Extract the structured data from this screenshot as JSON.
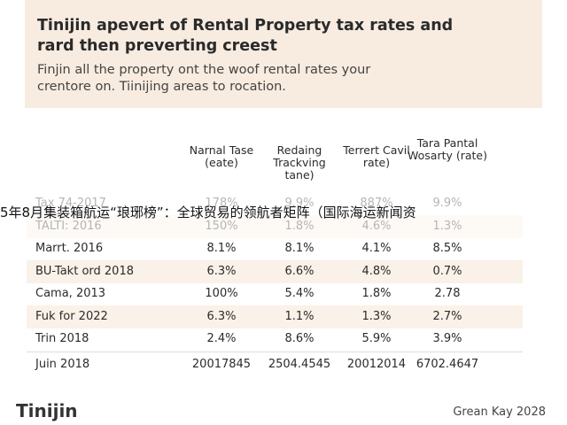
{
  "header": {
    "title": "Tinijin apevert of Rental Property tax rates and rard then preverting creest",
    "subtitle": "Finjin all the property ont the woof rental rates your crentore on. Tiinijing areas to rocation."
  },
  "table": {
    "columns": [
      "Narnal Tase (eate)",
      "Redaing Trackving tane)",
      "Terrert Cavil rate)",
      "Tara Pantal Wosarty (rate)"
    ],
    "rows": [
      [
        "Tax 74-2017",
        "178%",
        "9.9%",
        "887%",
        "9.9%"
      ],
      [
        "TALTI: 2016",
        "150%",
        "1.8%",
        "4.6%",
        "1.3%"
      ],
      [
        "Marrt. 2016",
        "8.1%",
        "8.1%",
        "4.1%",
        "8.5%"
      ],
      [
        "BU-Takt ord 2018",
        "6.3%",
        "6.6%",
        "4.8%",
        "0.7%"
      ],
      [
        "Cama, 2013",
        "100%",
        "5.4%",
        "1.8%",
        "2.78"
      ],
      [
        "Fuk for 2022",
        "6.3%",
        "1.1%",
        "1.3%",
        "2.7%"
      ],
      [
        "Trin 2018",
        "2.4%",
        "8.6%",
        "5.9%",
        "3.9%"
      ]
    ],
    "total": [
      "Juin 2018",
      "20017845",
      "2504.4545",
      "20012014",
      "6702.4647"
    ]
  },
  "overlay": "5年8月集装箱航运“琅琊榜”：全球贸易的领航者矩阵（国际海运新闻资",
  "footer": {
    "brand": "Tinijin",
    "note": "Grean Kay 2028"
  }
}
